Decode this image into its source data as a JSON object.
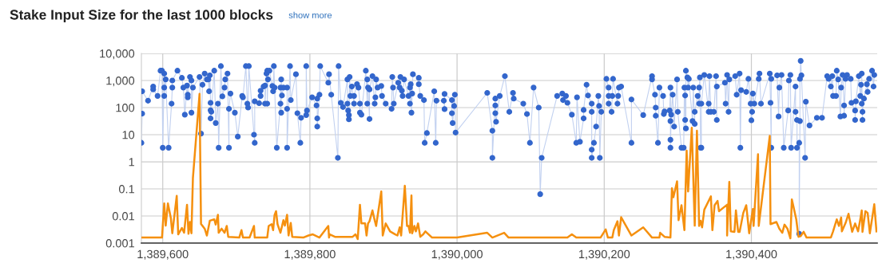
{
  "chart_data": {
    "type": "line",
    "title": "Stake Input Size for the last 1000 blocks",
    "annotations": [
      "show more"
    ],
    "log": "y",
    "grid": true,
    "legend": false,
    "xlim": [
      1389571,
      1390571
    ],
    "ylim": [
      0.001,
      10000
    ],
    "xticks": [
      {
        "value": 1389600,
        "label": "1,389,600"
      },
      {
        "value": 1389800,
        "label": "1,389,800"
      },
      {
        "value": 1390000,
        "label": "1,390,000"
      },
      {
        "value": 1390200,
        "label": "1,390,200"
      },
      {
        "value": 1390400,
        "label": "1,390,400"
      }
    ],
    "yticks": [
      {
        "value": 0.001,
        "label": "0.001"
      },
      {
        "value": 0.01,
        "label": "0.01"
      },
      {
        "value": 0.1,
        "label": "0.1"
      },
      {
        "value": 1,
        "label": "1"
      },
      {
        "value": 10,
        "label": "10"
      },
      {
        "value": 100,
        "label": "100"
      },
      {
        "value": 1000,
        "label": "1,000"
      },
      {
        "value": 10000,
        "label": "10,000"
      }
    ],
    "series": [
      {
        "marker": "circle",
        "color": "#3366cc",
        "x": [
          1389571,
          1389572,
          1389572,
          1389580,
          1389587,
          1389587,
          1389593,
          1389597,
          1389599,
          1389600,
          1389602,
          1389602,
          1389602,
          1389604,
          1389608,
          1389612,
          1389613,
          1389613,
          1389620,
          1389626,
          1389628,
          1389630,
          1389633,
          1389634,
          1389634,
          1389637,
          1389639,
          1389639,
          1389641,
          1389650,
          1389652,
          1389654,
          1389657,
          1389660,
          1389662,
          1389663,
          1389664,
          1389665,
          1389665,
          1389665,
          1389666,
          1389670,
          1389672,
          1389675,
          1389676,
          1389679,
          1389681,
          1389684,
          1389685,
          1389688,
          1389690,
          1389690,
          1389692,
          1389698,
          1389702,
          1389708,
          1389709,
          1389713,
          1389715,
          1389716,
          1389717,
          1389724,
          1389725,
          1389725,
          1389731,
          1389733,
          1389733,
          1389737,
          1389739,
          1389739,
          1389741,
          1389742,
          1389742,
          1389743,
          1389745,
          1389749,
          1389750,
          1389751,
          1389752,
          1389755,
          1389760,
          1389760,
          1389761,
          1389761,
          1389762,
          1389764,
          1389769,
          1389769,
          1389769,
          1389773,
          1389774,
          1389781,
          1389783,
          1389787,
          1389788,
          1389795,
          1389795,
          1389796,
          1389803,
          1389809,
          1389810,
          1389810,
          1389810,
          1389813,
          1389814,
          1389825,
          1389826,
          1389829,
          1389838,
          1389839,
          1389842,
          1389845,
          1389851,
          1389851,
          1389852,
          1389853,
          1389853,
          1389854,
          1389855,
          1389857,
          1389860,
          1389860,
          1389864,
          1389866,
          1389868,
          1389868,
          1389870,
          1389876,
          1389878,
          1389878,
          1389879,
          1389881,
          1389881,
          1389885,
          1389888,
          1389889,
          1389890,
          1389892,
          1389897,
          1389898,
          1389903,
          1389911,
          1389912,
          1389913,
          1389914,
          1389920,
          1389922,
          1389923,
          1389925,
          1389926,
          1389928,
          1389934,
          1389936,
          1389936,
          1389937,
          1389938,
          1389939,
          1389940,
          1389948,
          1389948,
          1389950,
          1389955,
          1389956,
          1389959,
          1389969,
          1389971,
          1389972,
          1389982,
          1389983,
          1389983,
          1389993,
          1389993,
          1389994,
          1389996,
          1389997,
          1389998,
          1390041,
          1390048,
          1390048,
          1390052,
          1390052,
          1390052,
          1390053,
          1390058,
          1390065,
          1390071,
          1390076,
          1390077,
          1390090,
          1390095,
          1390099,
          1390104,
          1390111,
          1390113,
          1390115,
          1390136,
          1390143,
          1390144,
          1390148,
          1390150,
          1390156,
          1390162,
          1390163,
          1390167,
          1390172,
          1390172,
          1390176,
          1390178,
          1390183,
          1390183,
          1390183,
          1390183,
          1390186,
          1390189,
          1390192,
          1390193,
          1390194,
          1390196,
          1390203,
          1390206,
          1390206,
          1390206,
          1390210,
          1390211,
          1390212,
          1390218,
          1390219,
          1390220,
          1390223,
          1390237,
          1390237,
          1390253,
          1390265,
          1390265,
          1390269,
          1390270,
          1390270,
          1390273,
          1390275,
          1390280,
          1390281,
          1390282,
          1390289,
          1390290,
          1390290,
          1390290,
          1390290,
          1390291,
          1390293,
          1390295,
          1390299,
          1390300,
          1390305,
          1390308,
          1390309,
          1390310,
          1390310,
          1390311,
          1390311,
          1390313,
          1390314,
          1390315,
          1390320,
          1390321,
          1390323,
          1390323,
          1390327,
          1390329,
          1390329,
          1390330,
          1390331,
          1390332,
          1390332,
          1390336,
          1390342,
          1390342,
          1390343,
          1390345,
          1390349,
          1390352,
          1390353,
          1390353,
          1390364,
          1390365,
          1390367,
          1390369,
          1390370,
          1390378,
          1390380,
          1390384,
          1390385,
          1390386,
          1390393,
          1390396,
          1390399,
          1390400,
          1390401,
          1390402,
          1390404,
          1390410,
          1390411,
          1390413,
          1390425,
          1390426,
          1390427,
          1390427,
          1390435,
          1390437,
          1390438,
          1390441,
          1390444,
          1390450,
          1390451,
          1390453,
          1390454,
          1390460,
          1390460,
          1390462,
          1390462,
          1390465,
          1390465,
          1390466,
          1390466,
          1390467,
          1390468,
          1390473,
          1390474,
          1390479,
          1390489,
          1390496,
          1390503,
          1390505,
          1390508,
          1390510,
          1390511,
          1390515,
          1390516,
          1390518,
          1390521,
          1390522,
          1390524,
          1390526,
          1390526,
          1390528,
          1390530,
          1390535,
          1390536,
          1390541,
          1390541,
          1390542,
          1390546,
          1390548,
          1390549,
          1390550,
          1390550,
          1390551,
          1390551,
          1390553,
          1390557,
          1390558,
          1390560,
          1390564,
          1390566,
          1390567
        ],
        "values": [
          5,
          60,
          400,
          180,
          600,
          470,
          270,
          2300,
          2300,
          3.3,
          1800,
          550,
          270,
          1100,
          3.3,
          140,
          550,
          1000,
          2300,
          1250,
          550,
          55,
          650,
          300,
          240,
          1350,
          1000,
          65,
          550,
          1350,
          11,
          700,
          1800,
          1100,
          1100,
          400,
          1550,
          150,
          80,
          40,
          70,
          2300,
          27,
          140,
          3.3,
          3400,
          260,
          550,
          1100,
          1800,
          3.3,
          90,
          330,
          65,
          8.5,
          270,
          240,
          3400,
          140,
          100,
          3400,
          10,
          5,
          170,
          145,
          420,
          270,
          600,
          650,
          140,
          1800,
          2300,
          140,
          1100,
          2300,
          630,
          400,
          3400,
          550,
          3.3,
          140,
          550,
          65,
          1100,
          280,
          550,
          550,
          90,
          3.3,
          3400,
          190,
          1700,
          62,
          5,
          42,
          53,
          3400,
          78,
          240,
          120,
          215,
          40,
          20,
          300,
          3400,
          830,
          1700,
          300,
          1.4,
          3400,
          150,
          105,
          1100,
          140,
          78,
          53,
          37,
          1350,
          270,
          600,
          140,
          270,
          730,
          550,
          140,
          65,
          55,
          2300,
          140,
          1100,
          550,
          38,
          470,
          1450,
          140,
          240,
          1100,
          550,
          630,
          270,
          140,
          90,
          1350,
          550,
          140,
          830,
          550,
          1350,
          420,
          270,
          1100,
          270,
          550,
          140,
          730,
          65,
          330,
          1700,
          1250,
          730,
          270,
          190,
          5,
          11.5,
          400,
          5,
          180,
          180,
          88,
          320,
          190,
          62,
          27,
          115,
          300,
          12,
          350,
          14,
          1.4,
          215,
          120,
          62,
          30,
          270,
          1450,
          70,
          350,
          215,
          140,
          58,
          5,
          550,
          100,
          0.064,
          1.4,
          270,
          330,
          190,
          270,
          150,
          55,
          5,
          240,
          5.5,
          40,
          82,
          700,
          280,
          140,
          70,
          2.8,
          1.4,
          5,
          20,
          270,
          115,
          1.4,
          70,
          1150,
          550,
          270,
          140,
          70,
          270,
          1150,
          140,
          270,
          550,
          600,
          5,
          200,
          53,
          1450,
          1100,
          300,
          100,
          50,
          5,
          550,
          270,
          58,
          72,
          78,
          550,
          32,
          6.5,
          3.3,
          55,
          300,
          20,
          1100,
          70,
          3.3,
          3.3,
          550,
          280,
          35,
          17,
          2300,
          1300,
          550,
          1150,
          32,
          550,
          25,
          70,
          270,
          140,
          550,
          1300,
          3.3,
          3.3,
          140,
          1600,
          70,
          140,
          1450,
          70,
          70,
          1450,
          35,
          600,
          830,
          140,
          1600,
          70,
          1100,
          1450,
          300,
          1800,
          3.3,
          440,
          380,
          1150,
          140,
          34,
          70,
          330,
          140,
          1150,
          1800,
          140,
          1800,
          150,
          3.3,
          1150,
          1550,
          47,
          550,
          1600,
          3.3,
          78,
          1000,
          1600,
          3.3,
          600,
          70,
          35,
          3.3,
          5,
          0.0022,
          32,
          1150,
          5300,
          1550,
          1.4,
          165,
          22,
          42,
          42,
          1450,
          1150,
          600,
          1450,
          270,
          270,
          2300,
          1100,
          47,
          550,
          1600,
          120,
          50,
          1150,
          1600,
          1150,
          150,
          78,
          35,
          170,
          1450,
          270,
          700,
          140,
          1800,
          35,
          70,
          215,
          730,
          380,
          1150,
          2300,
          600,
          1600
        ]
      },
      {
        "marker": "none",
        "color": "#f5900f",
        "x": [
          1389571,
          1389599,
          1389602,
          1389604,
          1389607,
          1389611,
          1389613,
          1389619,
          1389621,
          1389626,
          1389629,
          1389633,
          1389635,
          1389637,
          1389639,
          1389641,
          1389650,
          1389652,
          1389657,
          1389660,
          1389664,
          1389670,
          1389672,
          1389675,
          1389676,
          1389680,
          1389684,
          1389687,
          1389689,
          1389704,
          1389707,
          1389709,
          1389718,
          1389724,
          1389725,
          1389742,
          1389744,
          1389748,
          1389750,
          1389752,
          1389754,
          1389756,
          1389760,
          1389764,
          1389766,
          1389769,
          1389771,
          1389774,
          1389776,
          1389791,
          1389798,
          1389804,
          1389813,
          1389825,
          1389826,
          1389827,
          1389834,
          1389858,
          1389862,
          1389865,
          1389868,
          1389870,
          1389875,
          1389877,
          1389879,
          1389881,
          1389885,
          1389888,
          1389890,
          1389897,
          1389899,
          1389903,
          1389909,
          1389916,
          1389919,
          1389922,
          1389924,
          1389929,
          1389932,
          1389934,
          1389936,
          1389938,
          1389939,
          1389942,
          1389944,
          1389947,
          1389950,
          1389954,
          1389957,
          1389959,
          1389966,
          1390000,
          1390041,
          1390048,
          1390064,
          1390070,
          1390150,
          1390156,
          1390162,
          1390195,
          1390202,
          1390205,
          1390211,
          1390213,
          1390218,
          1390220,
          1390223,
          1390237,
          1390253,
          1390265,
          1390275,
          1390276,
          1390282,
          1390290,
          1390292,
          1390294,
          1390299,
          1390301,
          1390305,
          1390309,
          1390312,
          1390314,
          1390319,
          1390323,
          1390326,
          1390329,
          1390331,
          1390333,
          1390336,
          1390345,
          1390347,
          1390350,
          1390354,
          1390356,
          1390367,
          1390367,
          1390370,
          1390372,
          1390377,
          1390379,
          1390382,
          1390384,
          1390389,
          1390393,
          1390397,
          1390402,
          1390403,
          1390409,
          1390410,
          1390425,
          1390426,
          1390434,
          1390438,
          1390441,
          1390442,
          1390445,
          1390449,
          1390453,
          1390455,
          1390461,
          1390464,
          1390467,
          1390471,
          1390475,
          1390508,
          1390511,
          1390516,
          1390519,
          1390522,
          1390523,
          1390528,
          1390532,
          1390537,
          1390541,
          1390545,
          1390548,
          1390550,
          1390551,
          1390555,
          1390558,
          1390561,
          1390567,
          1390570
        ],
        "values": [
          0.0016,
          0.0016,
          0.029,
          0.0044,
          0.029,
          0.0084,
          0.0023,
          0.055,
          0.0021,
          0.0036,
          0.0024,
          0.026,
          0.0022,
          0.006,
          0.0023,
          0.25,
          320,
          0.0051,
          0.0034,
          0.0019,
          0.0067,
          0.0075,
          0.0048,
          0.011,
          0.0024,
          0.0034,
          0.0024,
          0.0043,
          0.0017,
          0.0016,
          0.003,
          0.0016,
          0.0016,
          0.0043,
          0.0016,
          0.0016,
          0.0043,
          0.005,
          0.003,
          0.011,
          0.015,
          0.005,
          0.0024,
          0.007,
          0.0044,
          0.011,
          0.0019,
          0.0055,
          0.0017,
          0.0016,
          0.0019,
          0.0021,
          0.0016,
          0.0043,
          0.0016,
          0.0021,
          0.0017,
          0.0017,
          0.0021,
          0.0014,
          0.026,
          0.0053,
          0.0053,
          0.0019,
          0.0053,
          0.0064,
          0.016,
          0.007,
          0.0043,
          0.08,
          0.0019,
          0.0053,
          0.0027,
          0.0021,
          0.0019,
          0.0038,
          0.0019,
          0.13,
          0.0043,
          0.0043,
          0.0024,
          0.057,
          0.0023,
          0.0043,
          0.0027,
          0.0053,
          0.0017,
          0.0021,
          0.0027,
          0.0024,
          0.0016,
          0.0016,
          0.0024,
          0.0016,
          0.0024,
          0.0016,
          0.0016,
          0.0021,
          0.0016,
          0.0016,
          0.0032,
          0.0016,
          0.0016,
          0.003,
          0.0064,
          0.0019,
          0.009,
          0.0019,
          0.0038,
          0.0016,
          0.0016,
          0.0024,
          0.0017,
          0.0016,
          0.105,
          0.049,
          0.19,
          0.007,
          0.025,
          0.003,
          2.6,
          0.08,
          18,
          0.0044,
          14,
          0.0043,
          0.0067,
          0.0038,
          0.017,
          0.053,
          0.003,
          0.025,
          0.036,
          0.015,
          0.026,
          0.0019,
          0.18,
          0.0027,
          0.0026,
          0.016,
          0.0026,
          0.0026,
          0.013,
          0.025,
          0.0023,
          0.018,
          0.0043,
          1.9,
          0.0043,
          9.1,
          0.005,
          0.006,
          0.0034,
          0.0026,
          0.0024,
          0.0048,
          0.0034,
          0.0015,
          0.041,
          0.0075,
          0.0017,
          0.0018,
          0.0026,
          0.0016,
          0.0016,
          0.0027,
          0.0075,
          0.0043,
          0.0088,
          0.0027,
          0.0055,
          0.012,
          0.0026,
          0.0053,
          0.0027,
          0.0075,
          0.016,
          0.0026,
          0.015,
          0.013,
          0.0023,
          0.027,
          0.0027
        ]
      }
    ]
  }
}
